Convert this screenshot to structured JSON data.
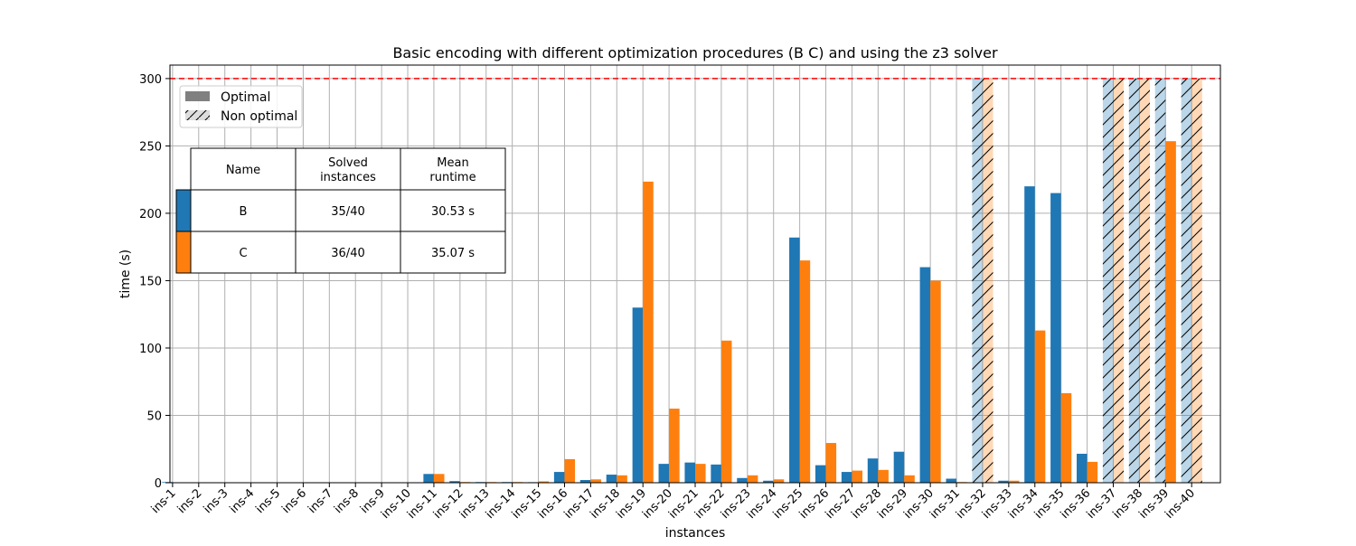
{
  "chart_data": {
    "type": "bar",
    "title": "Basic encoding with different optimization procedures (B C) and using the z3 solver",
    "xlabel": "instances",
    "ylabel": "time (s)",
    "ylim": [
      0,
      310
    ],
    "yticks": [
      0,
      50,
      100,
      150,
      200,
      250,
      300
    ],
    "timeout_line": {
      "value": 300,
      "color": "#ff0000",
      "style": "dashed"
    },
    "grid": true,
    "legend": {
      "placement": "top-left",
      "entries": [
        {
          "label": "Optimal",
          "pattern": "solid"
        },
        {
          "label": "Non optimal",
          "pattern": "hatched"
        }
      ]
    },
    "categories": [
      "ins-1",
      "ins-2",
      "ins-3",
      "ins-4",
      "ins-5",
      "ins-6",
      "ins-7",
      "ins-8",
      "ins-9",
      "ins-10",
      "ins-11",
      "ins-12",
      "ins-13",
      "ins-14",
      "ins-15",
      "ins-16",
      "ins-17",
      "ins-18",
      "ins-19",
      "ins-20",
      "ins-21",
      "ins-22",
      "ins-23",
      "ins-24",
      "ins-25",
      "ins-26",
      "ins-27",
      "ins-28",
      "ins-29",
      "ins-30",
      "ins-31",
      "ins-32",
      "ins-33",
      "ins-34",
      "ins-35",
      "ins-36",
      "ins-37",
      "ins-38",
      "ins-39",
      "ins-40"
    ],
    "series": [
      {
        "name": "B",
        "color": "#1f77b4",
        "values": [
          0.5,
          0.1,
          0.1,
          0.1,
          0.1,
          0.1,
          0.1,
          0.1,
          0.1,
          0.2,
          6.5,
          1.2,
          0.5,
          0.5,
          0.4,
          8,
          2,
          6,
          130,
          14,
          15,
          13.5,
          3.5,
          1.5,
          182,
          13,
          8,
          18,
          23,
          160,
          3,
          300,
          1.5,
          220,
          215,
          21.5,
          300,
          300,
          300,
          300
        ],
        "optimal": [
          true,
          true,
          true,
          true,
          true,
          true,
          true,
          true,
          true,
          true,
          true,
          true,
          true,
          true,
          true,
          true,
          true,
          true,
          true,
          true,
          true,
          true,
          true,
          true,
          true,
          true,
          true,
          true,
          true,
          true,
          true,
          false,
          true,
          true,
          true,
          true,
          false,
          false,
          false,
          false
        ]
      },
      {
        "name": "C",
        "color": "#ff7f0e",
        "values": [
          0.1,
          0.1,
          0.1,
          0.1,
          0.1,
          0.1,
          0.1,
          0.1,
          0.1,
          0.2,
          6.5,
          0.5,
          0.5,
          0.5,
          1,
          17.5,
          2.5,
          5.5,
          223.5,
          55,
          14,
          105.5,
          5.5,
          2.5,
          165,
          29.5,
          9,
          9.5,
          5.5,
          150,
          0.5,
          300,
          1.5,
          113,
          66.5,
          15.5,
          300,
          300,
          253.5,
          300
        ],
        "optimal": [
          true,
          true,
          true,
          true,
          true,
          true,
          true,
          true,
          true,
          true,
          true,
          true,
          true,
          true,
          true,
          true,
          true,
          true,
          true,
          true,
          true,
          true,
          true,
          true,
          true,
          true,
          true,
          true,
          true,
          true,
          true,
          false,
          true,
          true,
          true,
          true,
          false,
          false,
          true,
          false
        ]
      }
    ],
    "table": {
      "placement": "upper-left",
      "headers": [
        "Name",
        "Solved\ninstances",
        "Mean\nruntime"
      ],
      "rows": [
        {
          "color": "#1f77b4",
          "cells": [
            "B",
            "35/40",
            "30.53 s"
          ]
        },
        {
          "color": "#ff7f0e",
          "cells": [
            "C",
            "36/40",
            "35.07 s"
          ]
        }
      ]
    }
  }
}
